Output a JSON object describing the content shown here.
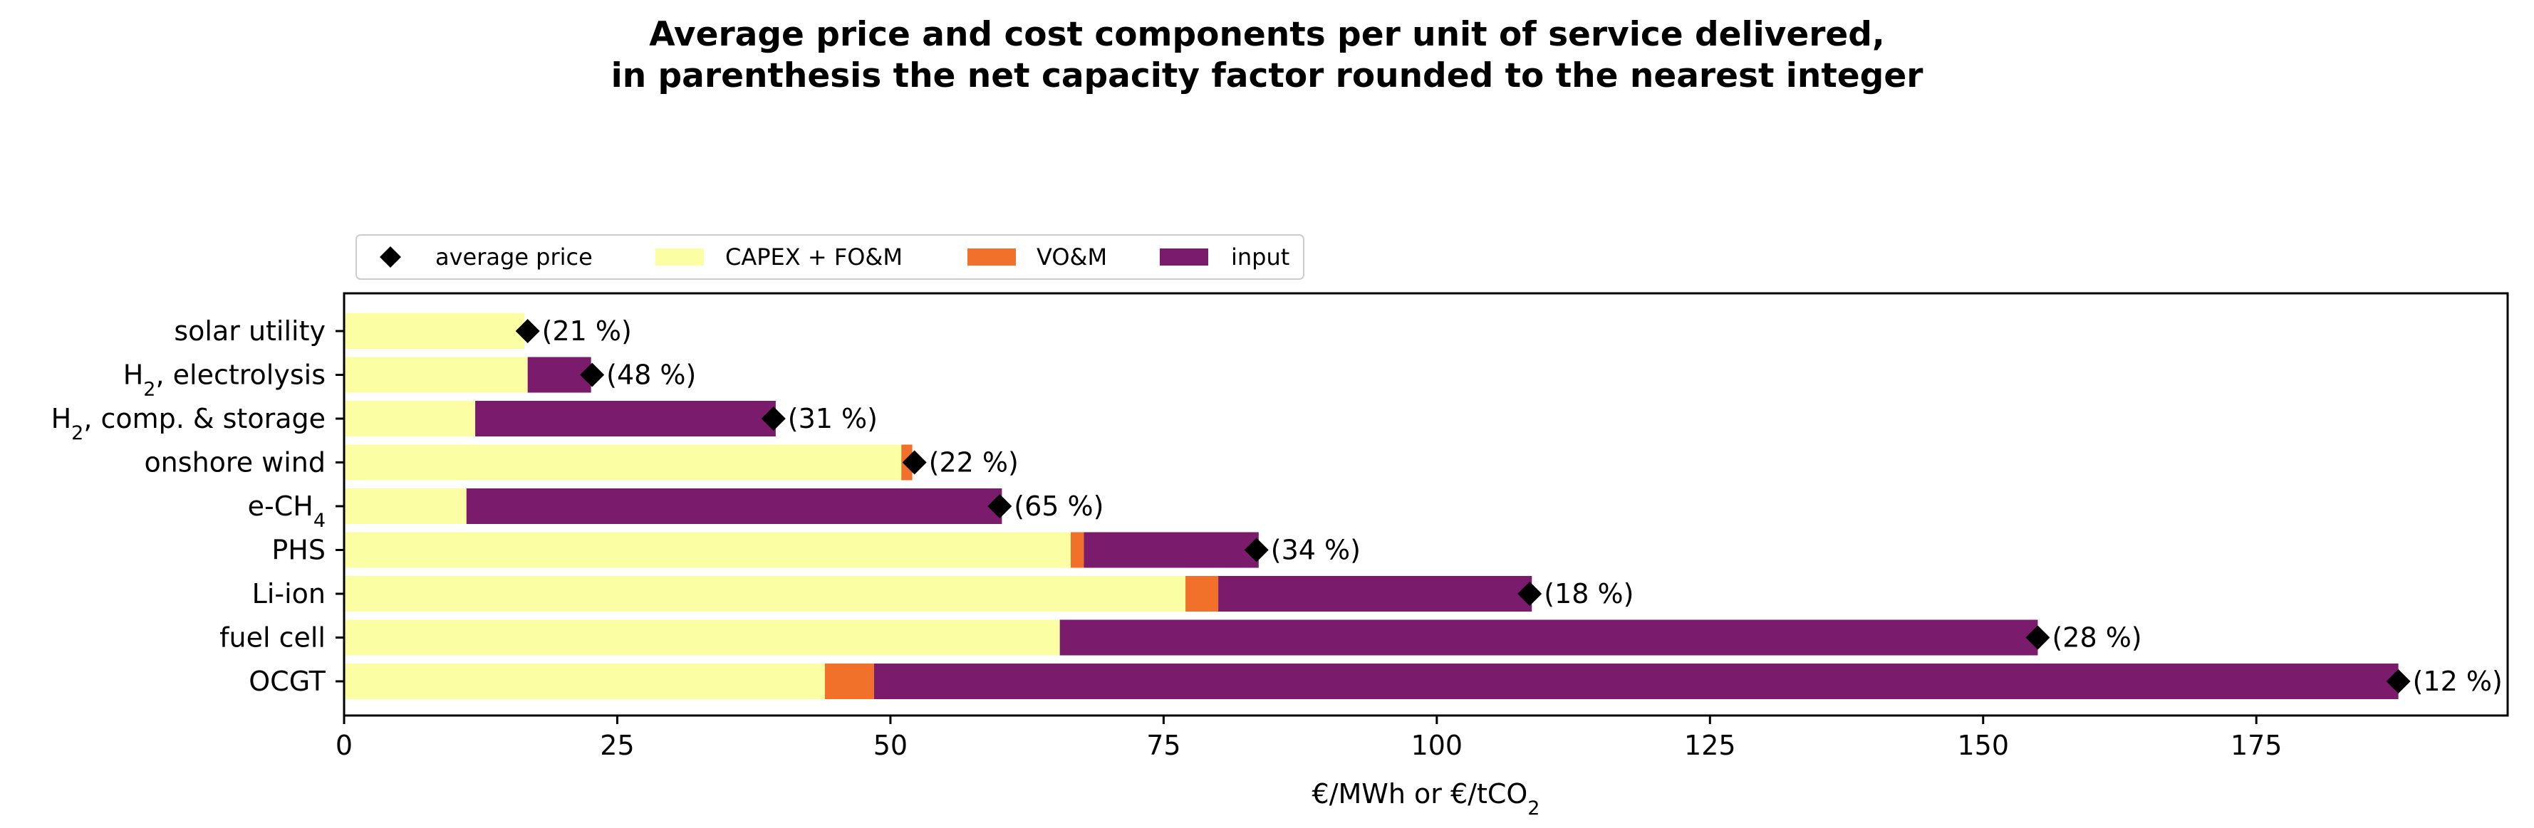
{
  "chart_data": {
    "type": "bar",
    "orientation": "horizontal",
    "stacked": true,
    "title_line1": "Average price and cost components per unit of service delivered,",
    "title_line2": "in parenthesis the net capacity factor rounded to the nearest integer",
    "xlabel_main": "€/MWh or €/tCO",
    "xlabel_sub": "2",
    "xlim": [
      0,
      198
    ],
    "xticks": [
      0,
      25,
      50,
      75,
      100,
      125,
      150,
      175
    ],
    "grid": false,
    "legend_placement": "top-left, above plot",
    "categories": [
      {
        "main": "solar utility",
        "sub": "",
        "tail": ""
      },
      {
        "main": "H",
        "sub": "2",
        "tail": ", electrolysis"
      },
      {
        "main": "H",
        "sub": "2",
        "tail": ", comp. & storage"
      },
      {
        "main": "onshore wind",
        "sub": "",
        "tail": ""
      },
      {
        "main": "e-CH",
        "sub": "4",
        "tail": ""
      },
      {
        "main": "PHS",
        "sub": "",
        "tail": ""
      },
      {
        "main": "Li-ion",
        "sub": "",
        "tail": ""
      },
      {
        "main": "fuel cell",
        "sub": "",
        "tail": ""
      },
      {
        "main": "OCGT",
        "sub": "",
        "tail": ""
      }
    ],
    "series": [
      {
        "name": "CAPEX + FO&M",
        "color": "#fcfea4",
        "values": [
          16.5,
          16.8,
          12.0,
          51.0,
          11.2,
          66.5,
          77.0,
          65.5,
          44.0
        ]
      },
      {
        "name": "VO&M",
        "color": "#f1702a",
        "values": [
          0,
          0,
          0,
          1.0,
          0,
          1.2,
          3.0,
          0,
          4.5
        ]
      },
      {
        "name": "input",
        "color": "#7a1b6c",
        "values": [
          0,
          5.8,
          27.5,
          0,
          49.0,
          16.0,
          28.7,
          89.5,
          139.5
        ]
      }
    ],
    "average_price": {
      "name": "average price",
      "color": "#000000",
      "values": [
        16.8,
        22.7,
        39.3,
        52.2,
        60.0,
        83.5,
        108.5,
        155.0,
        188.0
      ]
    },
    "capacity_factor_labels": [
      "(21 %)",
      "(48 %)",
      "(31 %)",
      "(22 %)",
      "(65 %)",
      "(34 %)",
      "(18 %)",
      "(28 %)",
      "(12 %)"
    ]
  }
}
